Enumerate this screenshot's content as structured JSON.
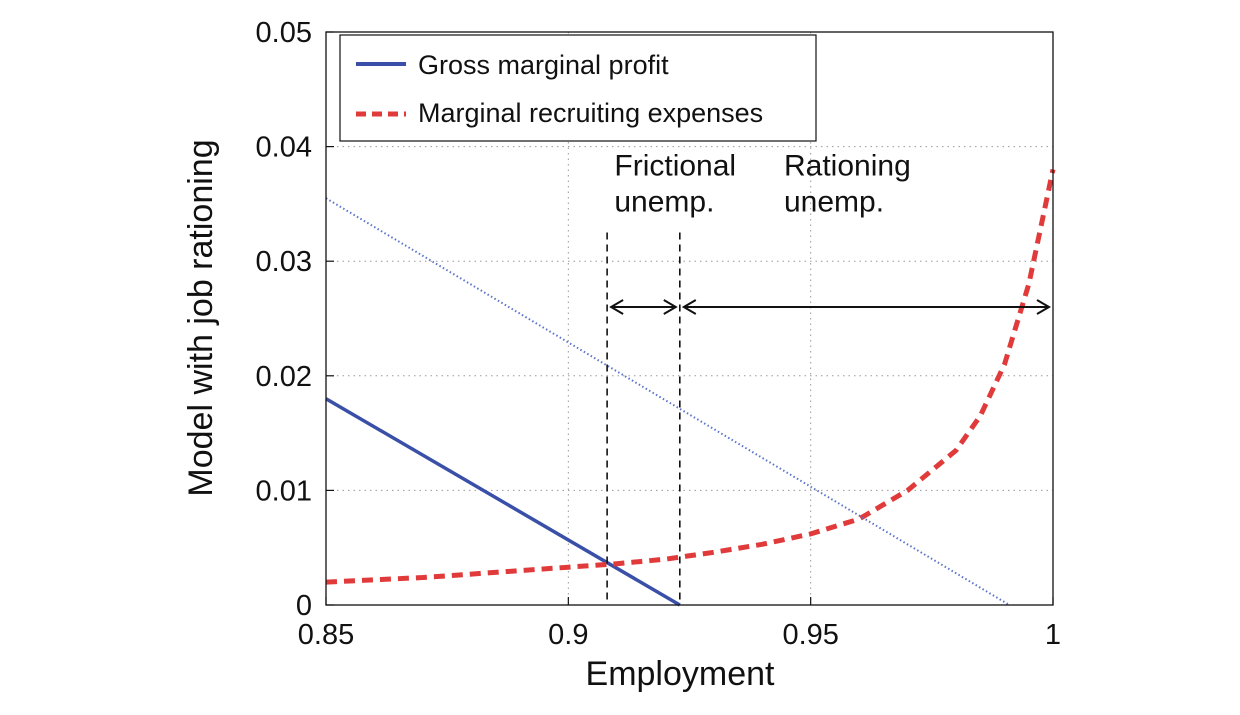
{
  "chart_data": {
    "type": "line",
    "title": "",
    "xlabel": "Employment",
    "ylabel": "Model with job rationing",
    "xlim": [
      0.85,
      1.0
    ],
    "ylim": [
      0,
      0.05
    ],
    "xticks": [
      0.85,
      0.9,
      0.95,
      1.0
    ],
    "xtick_labels": [
      "0.85",
      "0.9",
      "0.95",
      "1"
    ],
    "yticks": [
      0,
      0.01,
      0.02,
      0.03,
      0.04,
      0.05
    ],
    "ytick_labels": [
      "0",
      "0.01",
      "0.02",
      "0.03",
      "0.04",
      "0.05"
    ],
    "grid": true,
    "legend_position": "top-left",
    "series": [
      {
        "name": "Gross marginal profit",
        "style": "solid",
        "color": "#3a4fa8",
        "x": [
          0.85,
          0.923
        ],
        "y": [
          0.018,
          0.0
        ]
      },
      {
        "name": "Marginal recruiting expenses",
        "style": "dashed",
        "color": "#e03a3a",
        "x": [
          0.85,
          0.86,
          0.87,
          0.88,
          0.89,
          0.9,
          0.91,
          0.92,
          0.93,
          0.94,
          0.95,
          0.96,
          0.97,
          0.98,
          0.985,
          0.99,
          0.995,
          1.0
        ],
        "y": [
          0.002,
          0.0022,
          0.0024,
          0.0027,
          0.003,
          0.0033,
          0.0036,
          0.004,
          0.0046,
          0.0053,
          0.0062,
          0.0075,
          0.01,
          0.0135,
          0.0165,
          0.021,
          0.028,
          0.038
        ]
      },
      {
        "style": "dotted",
        "color": "#5b74c9",
        "x": [
          0.85,
          0.991
        ],
        "y": [
          0.0355,
          0.0
        ]
      }
    ],
    "vlines": [
      {
        "x": 0.908,
        "style": "dashed",
        "color": "#111111"
      },
      {
        "x": 0.923,
        "style": "dashed",
        "color": "#111111"
      }
    ],
    "arrows": [
      {
        "x1": 0.908,
        "x2": 0.923,
        "y": 0.026
      },
      {
        "x1": 0.923,
        "x2": 1.0,
        "y": 0.026
      }
    ],
    "annotations": [
      {
        "lines": [
          "Frictional",
          "unemp."
        ],
        "x": 0.9095,
        "y": 0.0375
      },
      {
        "lines": [
          "Rationing",
          "unemp."
        ],
        "x": 0.9445,
        "y": 0.0375
      }
    ]
  }
}
